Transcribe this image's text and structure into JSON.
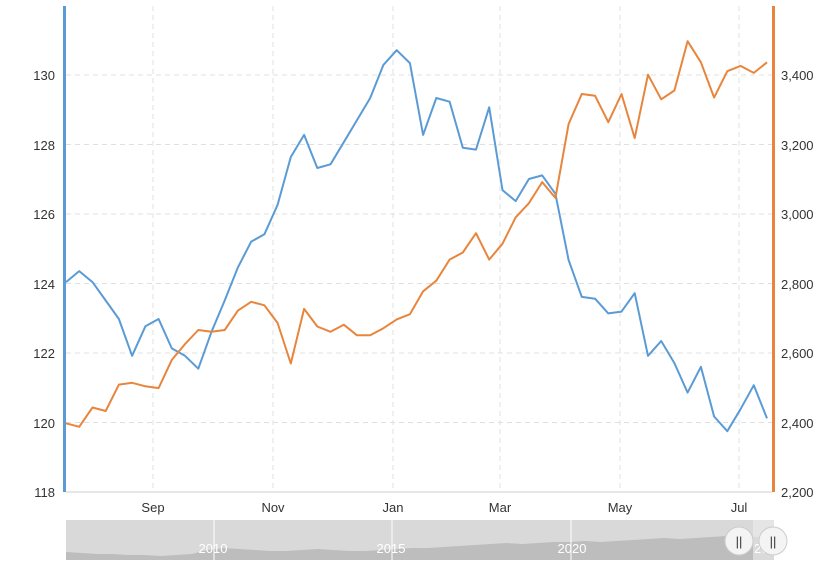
{
  "chart_data": {
    "type": "line",
    "title": "",
    "xlabel": "",
    "x_tick_labels": [
      "Sep",
      "Nov",
      "Jan",
      "Mar",
      "May",
      "Jul"
    ],
    "grid": true,
    "legend": "none",
    "y_left": {
      "range": [
        118,
        131.2
      ],
      "ticks": [
        "118",
        "120",
        "122",
        "124",
        "126",
        "128",
        "130"
      ],
      "color": "#5b9bd5"
    },
    "y_right": {
      "range": [
        2200,
        3580
      ],
      "ticks": [
        "2,200",
        "2,400",
        "2,600",
        "2,800",
        "3,000",
        "3,200",
        "3,400"
      ],
      "color": "#e8853d"
    },
    "series": [
      {
        "axis": "left",
        "color": "#5b9bd5",
        "values": [
          123.7,
          124.0,
          123.7,
          123.2,
          122.7,
          121.7,
          122.5,
          122.7,
          121.9,
          121.7,
          121.35,
          122.35,
          123.2,
          124.1,
          124.8,
          125.0,
          125.8,
          127.1,
          127.7,
          126.8,
          126.9,
          127.5,
          128.1,
          128.7,
          129.6,
          130.0,
          129.65,
          127.7,
          128.7,
          128.6,
          127.35,
          127.3,
          128.45,
          126.2,
          125.9,
          126.5,
          126.6,
          126.1,
          124.3,
          123.3,
          123.25,
          122.85,
          122.9,
          123.4,
          121.7,
          122.1,
          121.5,
          120.7,
          121.4,
          120.05,
          119.65,
          120.25,
          120.9,
          120.0
        ]
      },
      {
        "axis": "right",
        "color": "#e8853d",
        "values": [
          2395,
          2385,
          2440,
          2430,
          2505,
          2510,
          2500,
          2495,
          2575,
          2620,
          2660,
          2655,
          2660,
          2715,
          2740,
          2730,
          2680,
          2565,
          2720,
          2670,
          2655,
          2675,
          2645,
          2645,
          2665,
          2690,
          2705,
          2770,
          2800,
          2860,
          2880,
          2935,
          2860,
          2905,
          2980,
          3020,
          3080,
          3035,
          3245,
          3330,
          3325,
          3250,
          3330,
          3205,
          3385,
          3315,
          3340,
          3480,
          3420,
          3320,
          3395,
          3410,
          3390,
          3420
        ]
      }
    ]
  },
  "navigator": {
    "labels": [
      "2010",
      "2015",
      "2020",
      "202"
    ],
    "handle_glyph": "||"
  }
}
